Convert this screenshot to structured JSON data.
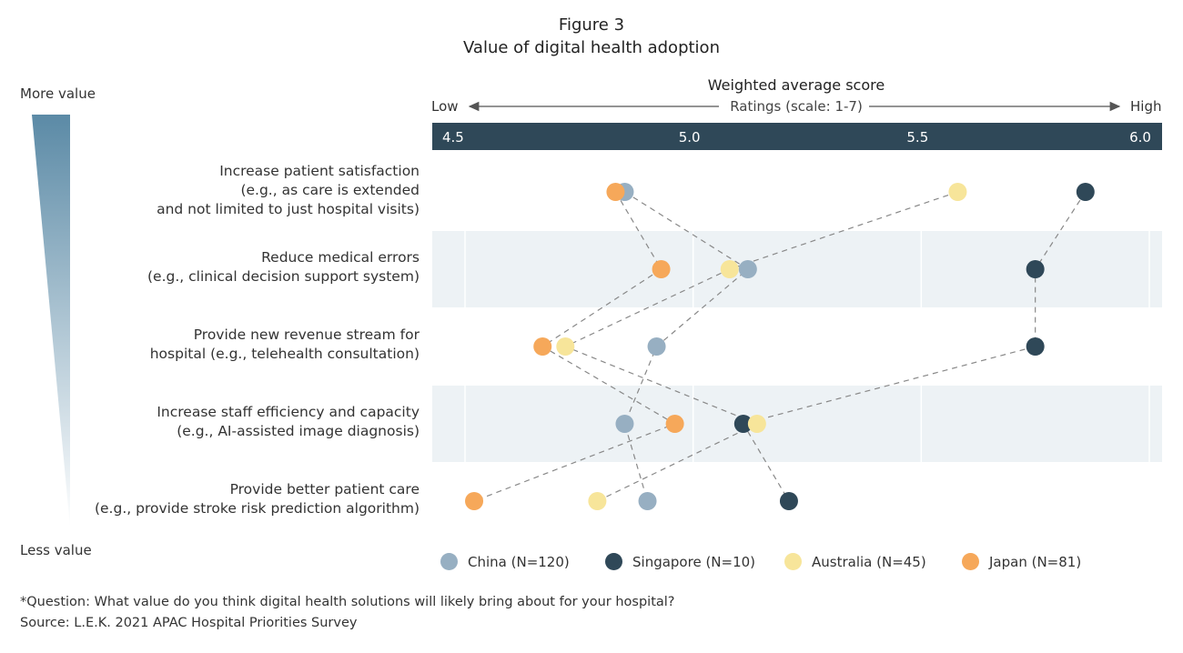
{
  "title": "Figure 3",
  "subtitle": "Value of digital health adoption",
  "side_scale": {
    "top": "More value",
    "bottom": "Less value"
  },
  "chart_data": {
    "type": "scatter",
    "title": "Figure 3 — Value of digital health adoption",
    "xlabel": "Weighted average score",
    "scale_note": "Ratings (scale: 1-7)",
    "low_label": "Low",
    "high_label": "High",
    "xlim": [
      4.5,
      6.0
    ],
    "xticks": [
      "4.5",
      "5.0",
      "5.5",
      "6.0"
    ],
    "categories": [
      [
        "Increase patient satisfaction",
        "(e.g., as care is extended",
        "and not limited to just hospital visits)"
      ],
      [
        "Reduce medical errors",
        "(e.g., clinical decision support system)"
      ],
      [
        "Provide new revenue stream for",
        "hospital (e.g., telehealth consultation)"
      ],
      [
        "Increase staff efficiency and capacity",
        "(e.g., AI-assisted image diagnosis)"
      ],
      [
        "Provide better patient care",
        "(e.g., provide stroke risk prediction algorithm)"
      ]
    ],
    "series": [
      {
        "name": "China (N=120)",
        "color": "#97afc2",
        "values": [
          4.85,
          5.12,
          4.92,
          4.85,
          4.9
        ]
      },
      {
        "name": "Singapore (N=10)",
        "color": "#2f4858",
        "values": [
          5.86,
          5.75,
          5.75,
          5.11,
          5.21
        ]
      },
      {
        "name": "Australia (N=45)",
        "color": "#f7e59a",
        "values": [
          5.58,
          5.08,
          4.72,
          5.14,
          4.79
        ]
      },
      {
        "name": "Japan (N=81)",
        "color": "#f6a85a",
        "values": [
          4.83,
          4.93,
          4.67,
          4.96,
          4.52
        ]
      }
    ],
    "legend": "bottom",
    "grid": true
  },
  "footnote": "*Question: What value do you think digital health solutions will likely bring about for your hospital?",
  "source": "Source: L.E.K. 2021 APAC Hospital Priorities Survey",
  "colors": {
    "header_bar": "#2f4858",
    "band": "#edf2f5",
    "gradient_top": "#5b8aa6"
  }
}
